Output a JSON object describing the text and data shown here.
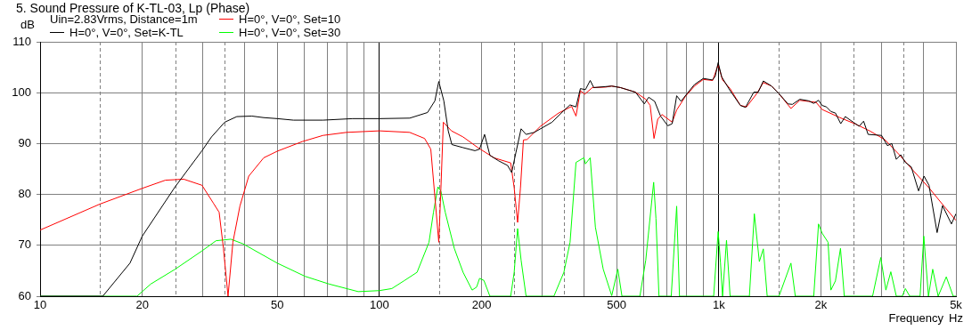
{
  "chart_data": {
    "type": "line",
    "title": "5. Sound Pressure of K-TL-03, Lp (Phase)",
    "subtitle": "Uin=2.83Vrms, Distance=1m",
    "xlabel": "Frequency",
    "ylabel": "dB",
    "annotations": [
      "Hz"
    ],
    "log": "x",
    "xlim": [
      10,
      5000
    ],
    "xticks": [
      10,
      20,
      50,
      100,
      200,
      500,
      {
        "value": 1000,
        "label": "1k"
      },
      {
        "value": 2000,
        "label": "2k"
      },
      {
        "value": 5000,
        "label": "5k"
      }
    ],
    "ylim": [
      60,
      110
    ],
    "yticks": [
      60,
      70,
      80,
      90,
      100,
      110
    ],
    "grid": true,
    "legend": "top left",
    "marker": "none",
    "line_style": "solid",
    "series": [
      {
        "name": "H=0°, V=0°, Set=K-TL",
        "color": "#000000",
        "x": [
          10,
          15.3,
          18.4,
          20,
          25,
          30,
          32,
          35,
          38,
          42.1,
          45.6,
          50,
          55.8,
          68.2,
          83.4,
          100,
          122.8,
          138.6,
          145.7,
          149.6,
          154.8,
          159.5,
          163.5,
          176.4,
          191.2,
          197.3,
          204.1,
          211.6,
          224.6,
          238.6,
          245.3,
          252.6,
          261.5,
          270.5,
          286,
          322.6,
          349.6,
          364.6,
          379.6,
          391,
          404.6,
          418,
          428.3,
          464.4,
          483.7,
          513.3,
          568.3,
          603.4,
          621.6,
          647.2,
          673.7,
          707.6,
          729,
          751.6,
          774,
          806,
          848,
          900,
          957,
          976,
          996,
          1020,
          1080,
          1158,
          1199,
          1268,
          1307,
          1353,
          1431,
          1505,
          1599,
          1648,
          1733,
          1840,
          1905,
          1968,
          2016,
          2077,
          2140,
          2207,
          2288,
          2360,
          2491,
          2593,
          2672,
          2755,
          3019,
          3139,
          3236,
          3336,
          3440,
          3547,
          3693,
          3880,
          4027,
          4164,
          4400,
          4564,
          4849,
          5000
        ],
        "values": [
          60,
          60,
          66.5,
          71.8,
          81.5,
          88.6,
          91.3,
          94.2,
          95.3,
          95.4,
          95.1,
          94.9,
          94.6,
          94.6,
          94.9,
          94.9,
          95.0,
          96.1,
          98.4,
          102.2,
          98.4,
          92.5,
          89.8,
          89.2,
          88.6,
          88.9,
          91.8,
          87.7,
          86.6,
          85.7,
          84.3,
          88.3,
          92.9,
          91.8,
          92.2,
          94.2,
          96.5,
          97.6,
          97.2,
          100.8,
          100.6,
          102.4,
          101.0,
          101.2,
          101.3,
          101.0,
          100.1,
          97.8,
          99.1,
          98.3,
          95.4,
          93.5,
          93.9,
          99.4,
          98.3,
          99.8,
          101.6,
          102.8,
          102.5,
          103.2,
          105.9,
          103.1,
          100.4,
          97.5,
          97.1,
          100.1,
          100.1,
          102.3,
          101.3,
          99.8,
          97.8,
          97.7,
          98.7,
          98.4,
          97.9,
          98.5,
          97.5,
          97.2,
          96.3,
          96.0,
          93.9,
          95.3,
          94.2,
          93.4,
          94.4,
          91.8,
          91.6,
          89.6,
          90.0,
          86.9,
          87.8,
          86.3,
          85.4,
          80.7,
          83.6,
          81.8,
          72.5,
          77.8,
          74.2,
          76.2
        ]
      },
      {
        "name": "H=0°, V=0°, Set=10",
        "color": "#ff0000",
        "x": [
          10,
          15,
          20,
          23.4,
          26.5,
          30,
          32.4,
          33.7,
          34.7,
          35.8,
          37,
          38.8,
          41.2,
          45.6,
          50,
          59.3,
          68.2,
          80,
          100,
          122.8,
          135.9,
          141.7,
          145.7,
          149.6,
          151.8,
          154.3,
          163,
          176.4,
          195.1,
          217.5,
          243.7,
          249.5,
          255.4,
          260.4,
          265.7,
          272.4,
          298.2,
          337.3,
          368.5,
          379.6,
          391,
          402.8,
          424,
          464.4,
          483.7,
          513.3,
          568.3,
          609.4,
          627.8,
          644.5,
          661.1,
          680.4,
          729,
          751.6,
          798,
          848,
          900,
          960,
          996,
          1026,
          1080,
          1158,
          1207,
          1294,
          1353,
          1431,
          1505,
          1632,
          1733,
          1936,
          2016,
          2275,
          2516,
          2783,
          3081,
          3405,
          3763,
          4164,
          4610,
          5000
        ],
        "values": [
          73.0,
          78.1,
          81.2,
          82.8,
          83.0,
          81.8,
          78.3,
          76.5,
          69.4,
          60,
          70.6,
          77.7,
          83.6,
          87.2,
          88.5,
          90.4,
          91.6,
          92.2,
          92.5,
          92.2,
          91.0,
          88.9,
          79.5,
          70.6,
          81.3,
          94.2,
          92.5,
          91.3,
          89.2,
          87.2,
          86.2,
          81.3,
          74.5,
          81.3,
          90.7,
          90.8,
          93.4,
          96.0,
          97.3,
          95.4,
          100.4,
          99.7,
          101.0,
          101.1,
          101.3,
          101.0,
          100.1,
          98.7,
          97.5,
          91.0,
          94.8,
          95.7,
          94.2,
          96.6,
          99.3,
          101.3,
          102.6,
          102.4,
          105.5,
          102.5,
          100.8,
          97.5,
          97.2,
          99.8,
          102.0,
          101.3,
          99.8,
          96.9,
          98.5,
          98.1,
          96.7,
          95.1,
          93.9,
          92.5,
          90.8,
          87.8,
          84.5,
          81.3,
          77.7,
          74.9
        ]
      },
      {
        "name": "H=0°, V=0°, Set=30",
        "color": "#00ff00",
        "x": [
          10,
          19.3,
          21.2,
          25,
          30,
          33,
          36.5,
          39.6,
          45.6,
          50,
          60.4,
          71,
          86.6,
          100,
          108.8,
          118,
          129.1,
          140,
          144.3,
          148.7,
          151.8,
          156.3,
          166.2,
          176.4,
          187.6,
          193.4,
          197.3,
          203.2,
          211.6,
          243.7,
          249.5,
          255.4,
          261.5,
          270.5,
          326.7,
          349.6,
          364.6,
          379.6,
          400.4,
          404.6,
          418,
          432.9,
          456.6,
          483.7,
          504.2,
          518.5,
          585.6,
          609.4,
          642.9,
          653,
          666.5,
          724.3,
          751.6,
          766,
          966,
          996,
          1012,
          1026,
          1054,
          1080,
          1231,
          1273,
          1317,
          1353,
          1389,
          1505,
          1632,
          1681,
          1905,
          1968,
          2016,
          2099,
          2140,
          2207,
          2284,
          2344,
          2840,
          3002,
          3108,
          3214,
          3336,
          3474,
          3547,
          3655,
          3920,
          4020,
          4149,
          4271,
          4432,
          4683,
          4907,
          5000
        ],
        "values": [
          60,
          60,
          62.4,
          65.3,
          68.9,
          70.9,
          71.2,
          70.3,
          68.0,
          66.5,
          63.9,
          62.4,
          60.9,
          61.1,
          61.5,
          63.0,
          64.7,
          70.6,
          76.5,
          81.5,
          80.6,
          76.5,
          69.4,
          64.7,
          61.2,
          61.8,
          63.5,
          63.1,
          60,
          60,
          64.7,
          73.3,
          67.1,
          60,
          60,
          64.7,
          70.6,
          86.3,
          87.2,
          86.0,
          87.2,
          73.6,
          65.3,
          60.1,
          65.3,
          60,
          60,
          67.1,
          82.4,
          75.3,
          60,
          60,
          77.7,
          60,
          60,
          72.7,
          66.5,
          60,
          71.0,
          60,
          60,
          76.2,
          66.8,
          69.3,
          60,
          60,
          66.5,
          60,
          60,
          74.2,
          72.4,
          70.6,
          61.2,
          63.0,
          69.4,
          60,
          60,
          67.6,
          61.2,
          64.8,
          60,
          60,
          61.5,
          60,
          60,
          71.8,
          60,
          65.3,
          60,
          63.8,
          60,
          60
        ]
      }
    ]
  }
}
